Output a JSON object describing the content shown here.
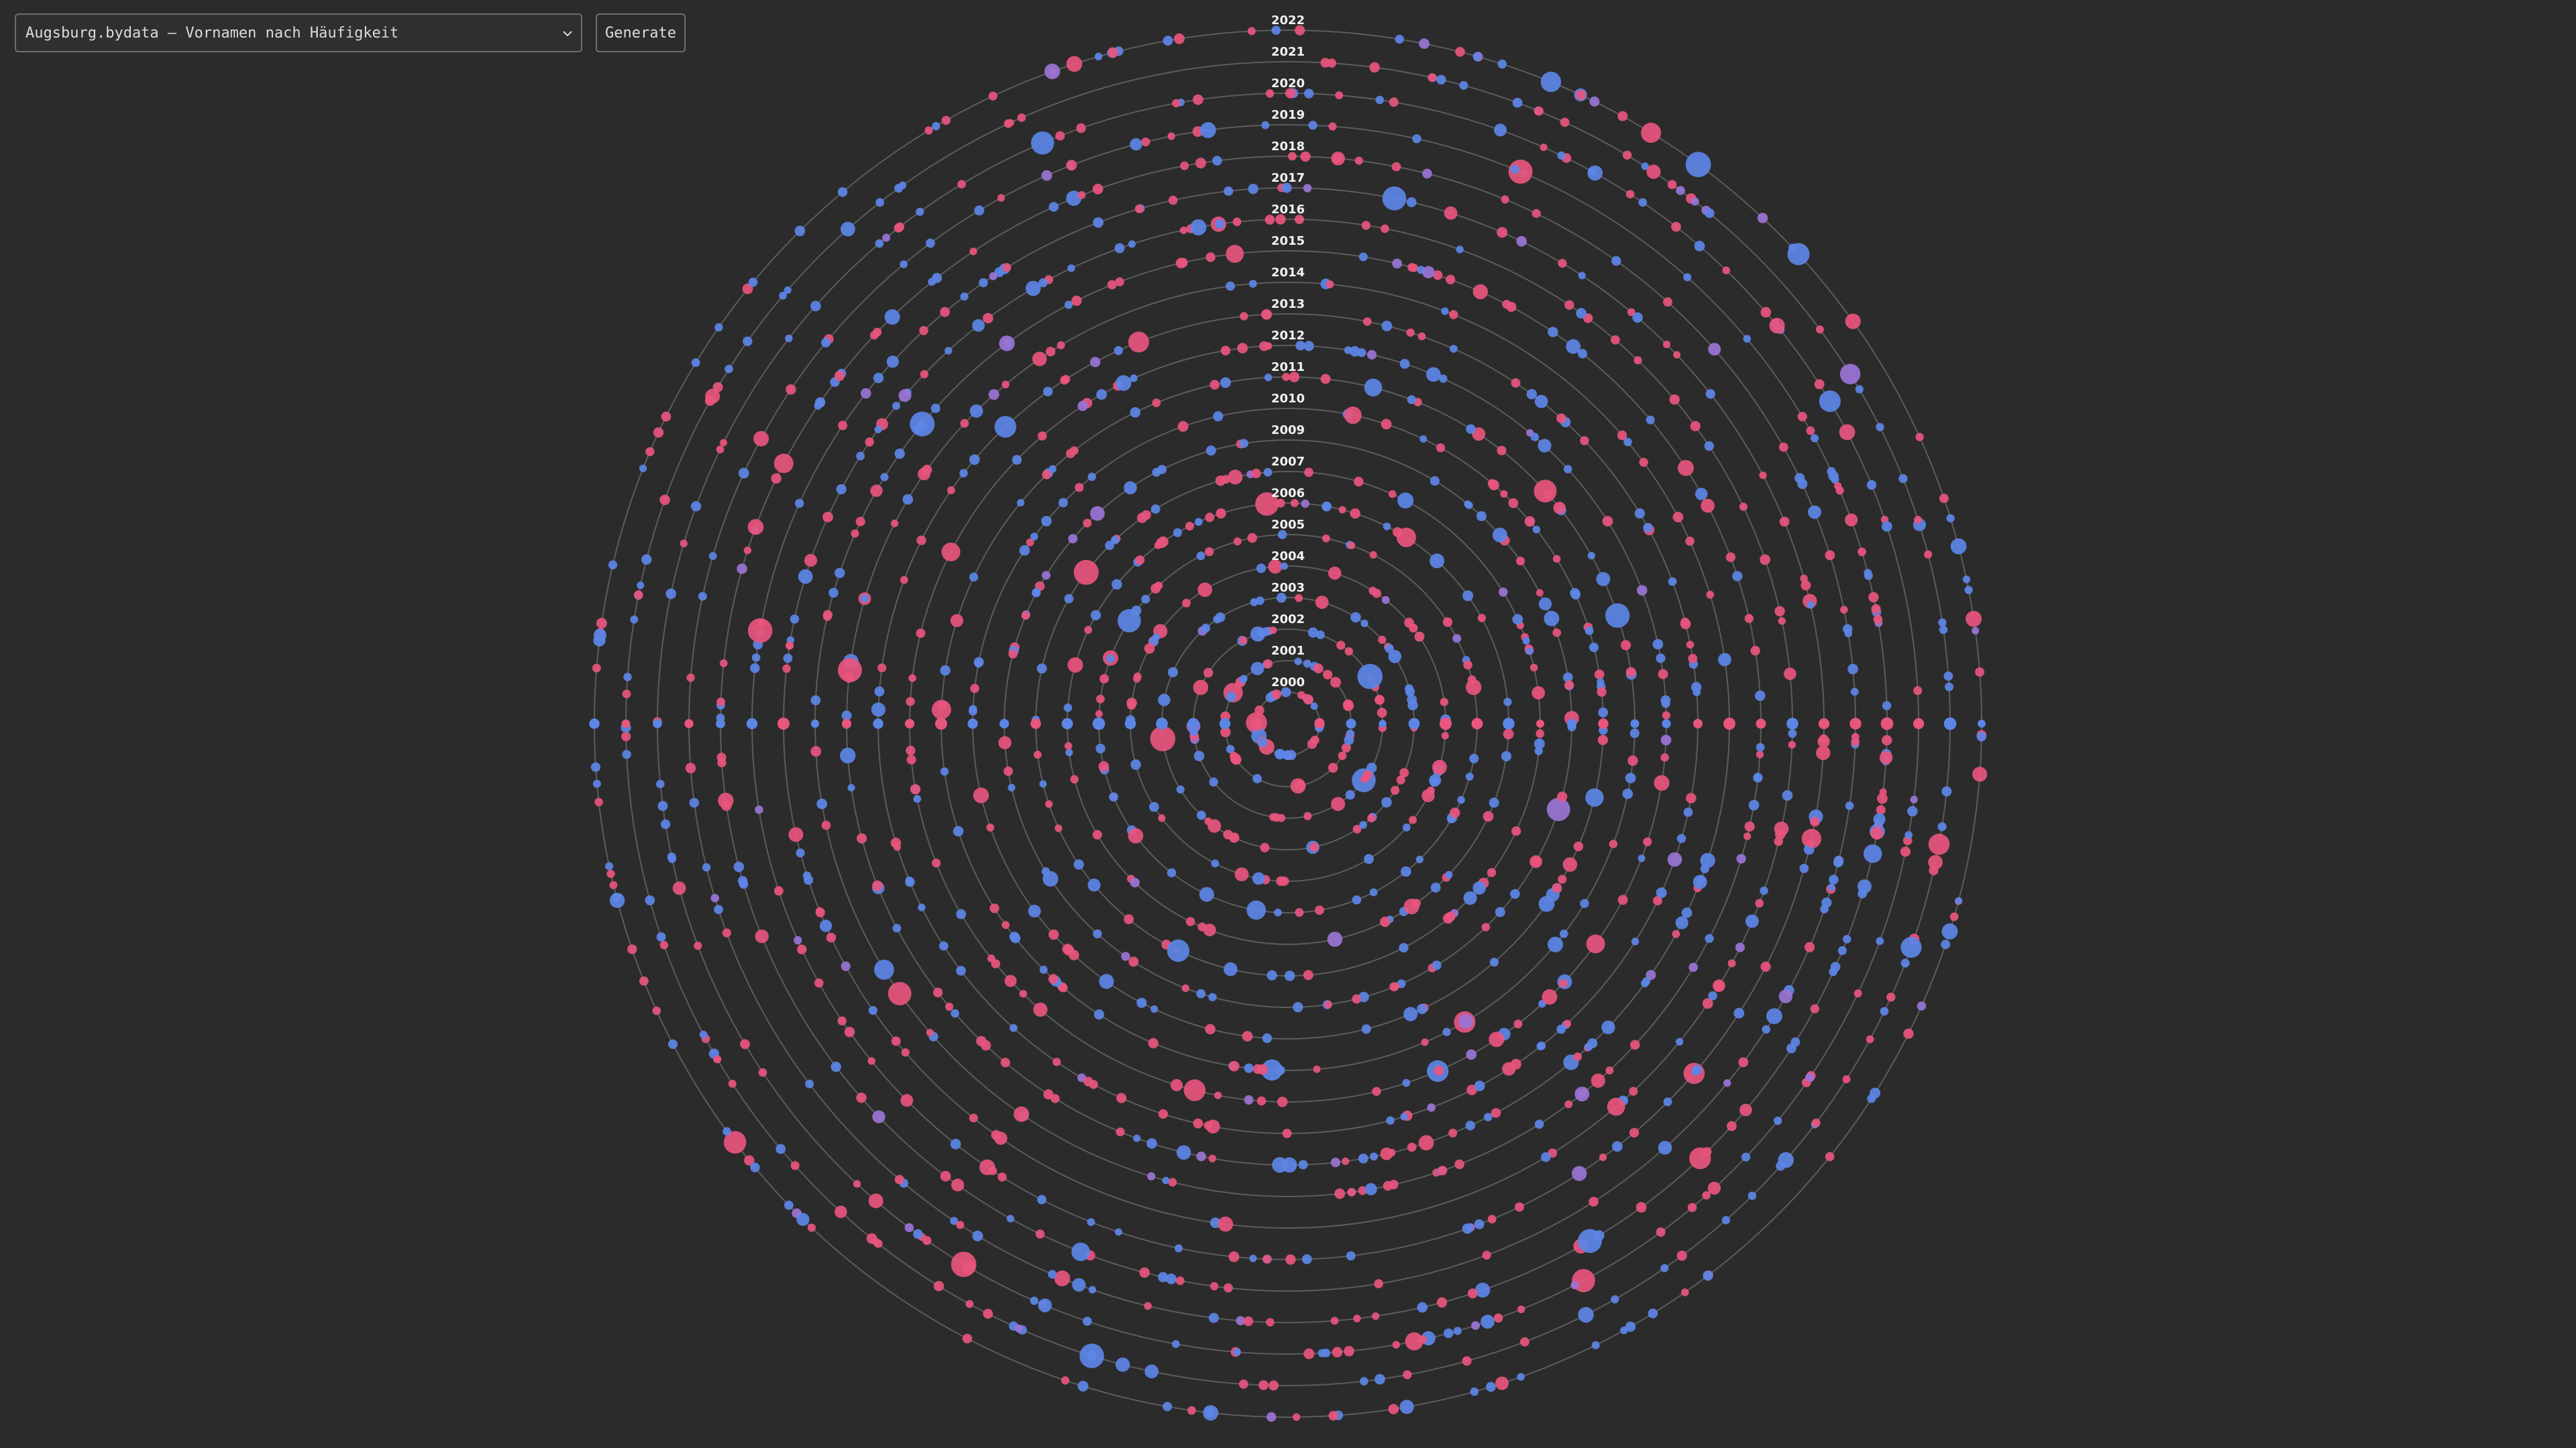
{
  "toolbar": {
    "dataset_select": {
      "selected": "Augsburg.bydata – Vornamen nach Häufigkeit",
      "options": [
        "Augsburg.bydata – Vornamen nach Häufigkeit"
      ]
    },
    "generate_label": "Generate",
    "chevron_icon": "chevron-down-icon"
  },
  "chart_data": {
    "type": "scatter",
    "layout": "radial",
    "rings": [
      "2000",
      "2001",
      "2002",
      "2003",
      "2004",
      "2005",
      "2006",
      "2007",
      "2009",
      "2010",
      "2011",
      "2012",
      "2013",
      "2014",
      "2015",
      "2016",
      "2017",
      "2018",
      "2019",
      "2020",
      "2021",
      "2022"
    ],
    "series": [
      {
        "color": "#e8557d"
      },
      {
        "color": "#5c86e6"
      },
      {
        "color": "#9a74d6"
      }
    ],
    "grid": true,
    "background": "#2b2b2b"
  }
}
